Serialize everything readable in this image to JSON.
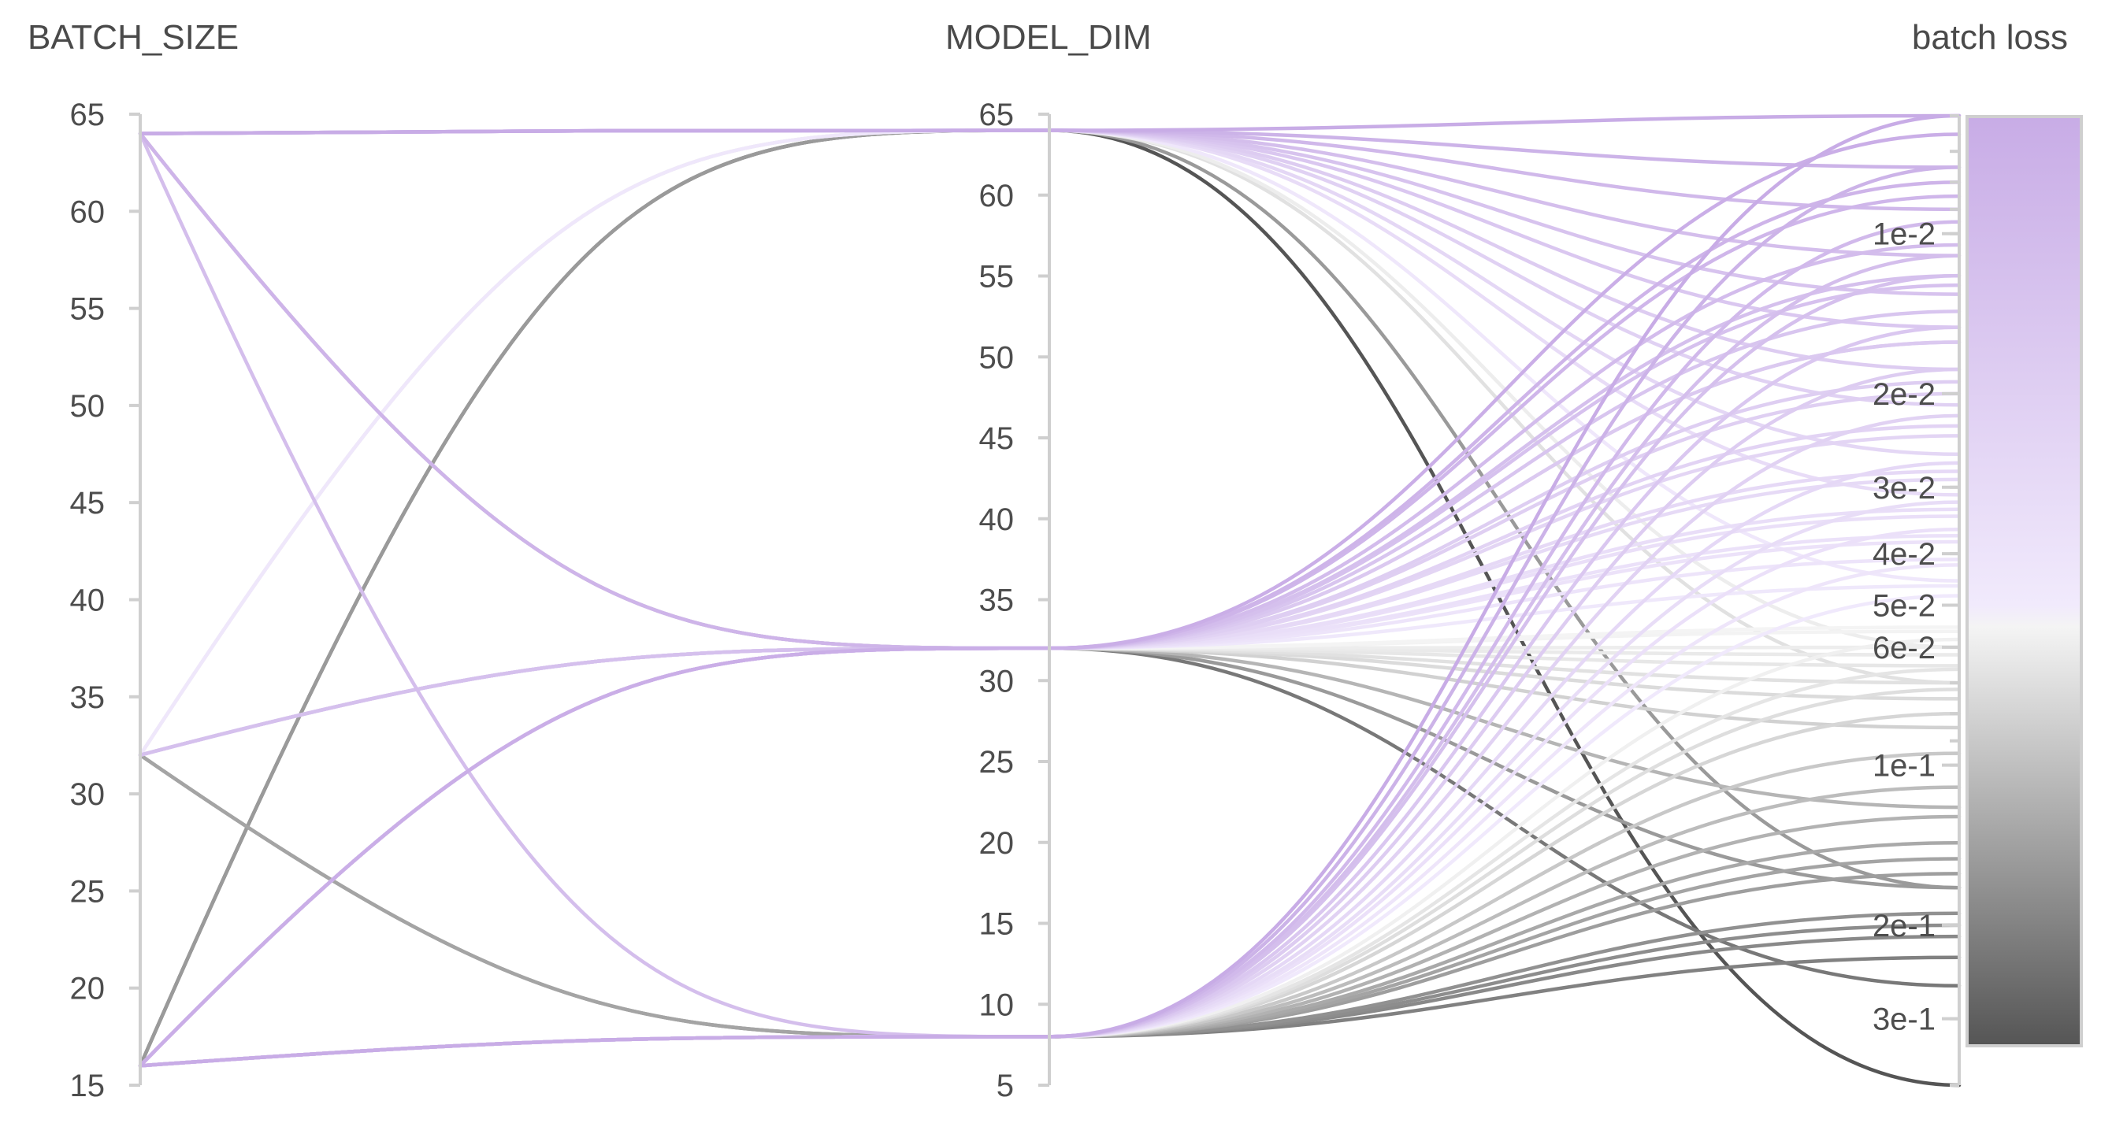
{
  "chart_data": {
    "type": "parallel_coordinates",
    "axes": [
      {
        "name": "BATCH_SIZE",
        "range": [
          15,
          65
        ],
        "ticks": [
          "65",
          "60",
          "55",
          "50",
          "45",
          "40",
          "35",
          "30",
          "25",
          "20",
          "15"
        ]
      },
      {
        "name": "MODEL_DIM",
        "range": [
          5,
          65
        ],
        "ticks": [
          "65",
          "60",
          "55",
          "50",
          "45",
          "40",
          "35",
          "30",
          "25",
          "20",
          "15",
          "10",
          "5"
        ]
      },
      {
        "name": "batch loss",
        "scale": "log",
        "range": [
          0.006,
          0.4
        ],
        "ticks": [
          "1e-2",
          "2e-2",
          "3e-2",
          "4e-2",
          "5e-2",
          "6e-2",
          "1e-1",
          "2e-1",
          "3e-1"
        ]
      }
    ],
    "colorbar": {
      "stops": [
        {
          "loss": 0.006,
          "color": "#c8ace6"
        },
        {
          "loss": 0.05,
          "color": "#f1eafc"
        },
        {
          "loss": 0.055,
          "color": "#f4f4f4"
        },
        {
          "loss": 0.4,
          "color": "#555555"
        }
      ]
    },
    "runs": [
      {
        "batch_size": 64,
        "model_dim": 64,
        "loss": 0.006
      },
      {
        "batch_size": 64,
        "model_dim": 64,
        "loss": 0.0075
      },
      {
        "batch_size": 64,
        "model_dim": 64,
        "loss": 0.009
      },
      {
        "batch_size": 64,
        "model_dim": 64,
        "loss": 0.011
      },
      {
        "batch_size": 64,
        "model_dim": 64,
        "loss": 0.013
      },
      {
        "batch_size": 64,
        "model_dim": 64,
        "loss": 0.015
      },
      {
        "batch_size": 64,
        "model_dim": 64,
        "loss": 0.018
      },
      {
        "batch_size": 64,
        "model_dim": 64,
        "loss": 0.021
      },
      {
        "batch_size": 64,
        "model_dim": 64,
        "loss": 0.026
      },
      {
        "batch_size": 64,
        "model_dim": 64,
        "loss": 0.031
      },
      {
        "batch_size": 64,
        "model_dim": 32,
        "loss": 0.008
      },
      {
        "batch_size": 64,
        "model_dim": 32,
        "loss": 0.014
      },
      {
        "batch_size": 64,
        "model_dim": 8,
        "loss": 0.011
      },
      {
        "batch_size": 64,
        "model_dim": 32,
        "loss": 0.17
      },
      {
        "batch_size": 32,
        "model_dim": 64,
        "loss": 0.06
      },
      {
        "batch_size": 32,
        "model_dim": 64,
        "loss": 0.045
      },
      {
        "batch_size": 32,
        "model_dim": 64,
        "loss": 0.07
      },
      {
        "batch_size": 32,
        "model_dim": 32,
        "loss": 0.012
      },
      {
        "batch_size": 32,
        "model_dim": 32,
        "loss": 0.016
      },
      {
        "batch_size": 32,
        "model_dim": 32,
        "loss": 0.019
      },
      {
        "batch_size": 32,
        "model_dim": 32,
        "loss": 0.023
      },
      {
        "batch_size": 32,
        "model_dim": 32,
        "loss": 0.028
      },
      {
        "batch_size": 32,
        "model_dim": 32,
        "loss": 0.034
      },
      {
        "batch_size": 32,
        "model_dim": 32,
        "loss": 0.038
      },
      {
        "batch_size": 32,
        "model_dim": 32,
        "loss": 0.055
      },
      {
        "batch_size": 32,
        "model_dim": 32,
        "loss": 0.062
      },
      {
        "batch_size": 32,
        "model_dim": 32,
        "loss": 0.07
      },
      {
        "batch_size": 32,
        "model_dim": 32,
        "loss": 0.26
      },
      {
        "batch_size": 32,
        "model_dim": 8,
        "loss": 0.15
      },
      {
        "batch_size": 32,
        "model_dim": 8,
        "loss": 0.21
      },
      {
        "batch_size": 16,
        "model_dim": 64,
        "loss": 0.17
      },
      {
        "batch_size": 16,
        "model_dim": 64,
        "loss": 0.4
      },
      {
        "batch_size": 16,
        "model_dim": 32,
        "loss": 0.0065
      },
      {
        "batch_size": 16,
        "model_dim": 32,
        "loss": 0.0085
      },
      {
        "batch_size": 16,
        "model_dim": 32,
        "loss": 0.0105
      },
      {
        "batch_size": 16,
        "model_dim": 32,
        "loss": 0.0125
      },
      {
        "batch_size": 16,
        "model_dim": 32,
        "loss": 0.016
      },
      {
        "batch_size": 16,
        "model_dim": 32,
        "loss": 0.02
      },
      {
        "batch_size": 16,
        "model_dim": 32,
        "loss": 0.024
      },
      {
        "batch_size": 16,
        "model_dim": 32,
        "loss": 0.029
      },
      {
        "batch_size": 16,
        "model_dim": 32,
        "loss": 0.033
      },
      {
        "batch_size": 16,
        "model_dim": 32,
        "loss": 0.037
      },
      {
        "batch_size": 16,
        "model_dim": 32,
        "loss": 0.041
      },
      {
        "batch_size": 16,
        "model_dim": 32,
        "loss": 0.046
      },
      {
        "batch_size": 16,
        "model_dim": 32,
        "loss": 0.056
      },
      {
        "batch_size": 16,
        "model_dim": 32,
        "loss": 0.06
      },
      {
        "batch_size": 16,
        "model_dim": 32,
        "loss": 0.065
      },
      {
        "batch_size": 16,
        "model_dim": 32,
        "loss": 0.075
      },
      {
        "batch_size": 16,
        "model_dim": 32,
        "loss": 0.085
      },
      {
        "batch_size": 16,
        "model_dim": 32,
        "loss": 0.12
      },
      {
        "batch_size": 16,
        "model_dim": 8,
        "loss": 0.006
      },
      {
        "batch_size": 16,
        "model_dim": 8,
        "loss": 0.0075
      },
      {
        "batch_size": 16,
        "model_dim": 8,
        "loss": 0.0095
      },
      {
        "batch_size": 16,
        "model_dim": 8,
        "loss": 0.012
      },
      {
        "batch_size": 16,
        "model_dim": 8,
        "loss": 0.015
      },
      {
        "batch_size": 16,
        "model_dim": 8,
        "loss": 0.018
      },
      {
        "batch_size": 16,
        "model_dim": 8,
        "loss": 0.022
      },
      {
        "batch_size": 16,
        "model_dim": 8,
        "loss": 0.027
      },
      {
        "batch_size": 16,
        "model_dim": 8,
        "loss": 0.032
      },
      {
        "batch_size": 16,
        "model_dim": 8,
        "loss": 0.036
      },
      {
        "batch_size": 16,
        "model_dim": 8,
        "loss": 0.042
      },
      {
        "batch_size": 16,
        "model_dim": 8,
        "loss": 0.048
      },
      {
        "batch_size": 16,
        "model_dim": 8,
        "loss": 0.058
      },
      {
        "batch_size": 16,
        "model_dim": 8,
        "loss": 0.066
      },
      {
        "batch_size": 16,
        "model_dim": 8,
        "loss": 0.072
      },
      {
        "batch_size": 16,
        "model_dim": 8,
        "loss": 0.08
      },
      {
        "batch_size": 16,
        "model_dim": 8,
        "loss": 0.095
      },
      {
        "batch_size": 16,
        "model_dim": 8,
        "loss": 0.11
      },
      {
        "batch_size": 16,
        "model_dim": 8,
        "loss": 0.125
      },
      {
        "batch_size": 16,
        "model_dim": 8,
        "loss": 0.14
      },
      {
        "batch_size": 16,
        "model_dim": 8,
        "loss": 0.16
      },
      {
        "batch_size": 16,
        "model_dim": 8,
        "loss": 0.19
      },
      {
        "batch_size": 16,
        "model_dim": 8,
        "loss": 0.2
      },
      {
        "batch_size": 16,
        "model_dim": 8,
        "loss": 0.23
      }
    ]
  }
}
